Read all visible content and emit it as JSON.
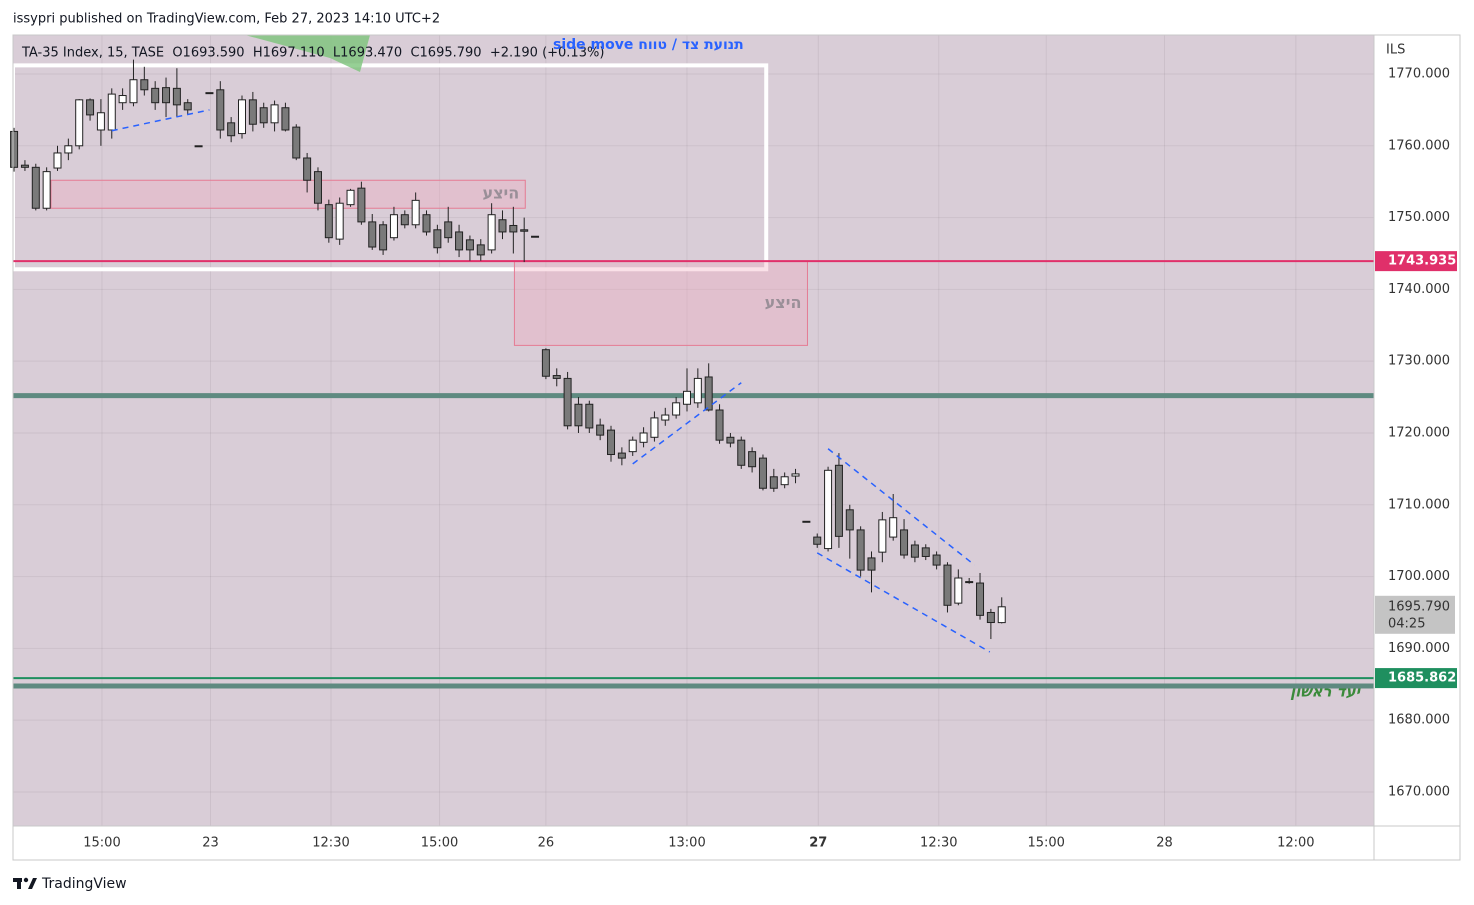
{
  "chart_data": {
    "type": "candlestick",
    "title": "issypri published on TradingView.com, Feb 27, 2023 14:10 UTC+2",
    "legend_text": "TA-35 Index, 15, TASE  O1693.590  H1697.110  L1693.470  C1695.790  +2.190 (+0.13%)",
    "currency": "ILS",
    "annotation": "side move תנועת צד / טווח",
    "target_text": "יעד ראשון",
    "footer": "TradingView",
    "up_color": "#ffffff",
    "down_color": "#7a7a7a",
    "x": [
      0,
      1,
      2,
      3,
      4,
      5,
      6,
      7,
      8,
      9,
      10,
      11,
      12,
      13,
      14,
      15,
      16,
      17,
      18,
      19,
      20,
      21,
      22,
      23,
      24,
      25,
      26,
      27,
      28,
      29,
      30,
      31,
      32,
      33,
      34,
      35,
      36,
      37,
      38,
      39,
      40,
      41,
      42,
      43,
      44,
      45,
      46,
      47,
      48,
      49,
      50,
      51,
      52,
      53,
      54,
      55,
      56,
      57,
      58,
      59,
      60,
      61,
      62,
      63,
      64,
      65,
      66,
      67,
      68,
      69,
      70,
      71,
      72,
      73,
      74,
      75,
      76,
      77,
      78,
      79,
      80,
      81,
      82,
      83,
      84,
      85,
      86,
      87,
      88,
      89,
      90,
      91
    ],
    "open": [
      1762,
      1757.3,
      1757,
      1751.3,
      1756.9,
      1759,
      1760,
      1766.4,
      1762.2,
      1762.2,
      1766,
      1766,
      1769.2,
      1768,
      1768.1,
      1768,
      1766,
      1760,
      1767.4,
      1767.8,
      1763.2,
      1761.7,
      1766.4,
      1765.3,
      1763.2,
      1765.3,
      1762.6,
      1758.3,
      1756.4,
      1751.8,
      1747,
      1751.8,
      1754.1,
      1749.4,
      1749,
      1747.2,
      1750.4,
      1749,
      1750.4,
      1748.3,
      1749.4,
      1748,
      1746.9,
      1746.2,
      1745.5,
      1749.7,
      1748.9,
      1748.3,
      1747.4,
      1731.6,
      1728,
      1727.6,
      1724,
      1724,
      1721.1,
      1720.4,
      1717.2,
      1717.4,
      1718.7,
      1719.4,
      1721.8,
      1722.5,
      1724,
      1724.2,
      1727.8,
      1723.2,
      1719.4,
      1719,
      1717.4,
      1716.5,
      1713.9,
      1712.8,
      1714,
      1707.7,
      1705.5,
      1703.9,
      1715.5,
      1709.3,
      1706.5,
      1702.6,
      1703.4,
      1705.5,
      1706.5,
      1704.4,
      1704,
      1703,
      1701.6,
      1696.3,
      1699.3,
      1699.1,
      1695,
      1693.59
    ],
    "high": [
      1762.5,
      1758,
      1757.5,
      1757,
      1760,
      1761,
      1766.5,
      1766.6,
      1766.5,
      1768,
      1768,
      1772,
      1771,
      1769,
      1769.5,
      1770.8,
      1766.5,
      1760,
      1767.4,
      1769,
      1764,
      1767,
      1767.5,
      1766,
      1766.3,
      1766,
      1763,
      1759,
      1757,
      1752.5,
      1752.8,
      1754,
      1755,
      1750.5,
      1749.5,
      1751.5,
      1751,
      1753.5,
      1751,
      1749,
      1751.5,
      1749,
      1747.5,
      1747,
      1752,
      1751,
      1751.5,
      1750,
      1747.4,
      1731.8,
      1729,
      1728.5,
      1725,
      1724.5,
      1722,
      1721,
      1718,
      1719.5,
      1720.8,
      1723,
      1723.5,
      1725,
      1729,
      1729,
      1729.7,
      1724,
      1720,
      1719.5,
      1718,
      1717,
      1715,
      1714.5,
      1715,
      1707.7,
      1706,
      1715.3,
      1717.2,
      1710,
      1707,
      1703.5,
      1709,
      1711.5,
      1708,
      1705,
      1704.5,
      1703.5,
      1702,
      1701,
      1699.8,
      1700.5,
      1695.5,
      1697.11
    ],
    "low": [
      1756.4,
      1756.5,
      1751,
      1751,
      1756.5,
      1758,
      1759.5,
      1763.5,
      1760,
      1761,
      1765,
      1765.5,
      1767,
      1765,
      1764,
      1764,
      1764.3,
      1760,
      1767.4,
      1761,
      1760.5,
      1761,
      1762,
      1762.5,
      1762,
      1762,
      1758,
      1753.5,
      1751,
      1746.5,
      1746.2,
      1751.5,
      1749,
      1745.5,
      1744.8,
      1746.8,
      1748.5,
      1748.5,
      1747.5,
      1745,
      1746.5,
      1744.5,
      1744,
      1744,
      1745,
      1747,
      1745,
      1743.8,
      1747.4,
      1727.5,
      1726.5,
      1720.5,
      1720,
      1720,
      1719,
      1716,
      1715.5,
      1716.8,
      1718,
      1718.8,
      1721,
      1722,
      1723,
      1723.5,
      1723,
      1718.5,
      1718,
      1715,
      1714.5,
      1712,
      1711.8,
      1712.3,
      1713,
      1707.7,
      1704,
      1703.5,
      1704,
      1702.5,
      1700,
      1697.8,
      1702,
      1705,
      1702.5,
      1702,
      1702.3,
      1701,
      1695,
      1696,
      1699,
      1694,
      1691.3,
      1693.47
    ],
    "close": [
      1757,
      1757,
      1751.3,
      1756.4,
      1759,
      1760,
      1766.4,
      1764.3,
      1764.6,
      1767.2,
      1767,
      1769.2,
      1767.8,
      1766,
      1766,
      1765.7,
      1765,
      1760,
      1767.4,
      1762.2,
      1761.4,
      1766.4,
      1763,
      1763.2,
      1765.7,
      1762.2,
      1758.3,
      1755.2,
      1752,
      1747.2,
      1752,
      1753.8,
      1749.4,
      1745.9,
      1745.5,
      1750.4,
      1749,
      1752.4,
      1748,
      1745.8,
      1747.2,
      1745.5,
      1745.5,
      1744.8,
      1750.4,
      1748,
      1748,
      1748.1,
      1747.4,
      1727.9,
      1727.6,
      1721,
      1721,
      1720.7,
      1719.7,
      1717,
      1716.5,
      1719,
      1720,
      1722.1,
      1722.5,
      1724.2,
      1725.8,
      1727.6,
      1723.2,
      1719,
      1718.6,
      1715.5,
      1715.3,
      1712.3,
      1712.3,
      1713.9,
      1714.3,
      1707.7,
      1704.5,
      1714.8,
      1705.6,
      1706.5,
      1700.9,
      1700.9,
      1707.9,
      1708.2,
      1703,
      1702.7,
      1702.8,
      1701.6,
      1696,
      1699.8,
      1699.3,
      1694.6,
      1693.6,
      1695.79
    ],
    "xlim": [
      -0.1,
      125.3
    ],
    "xticks": [
      {
        "value": 8.1,
        "label": "15:00"
      },
      {
        "value": 18.1,
        "label": "23"
      },
      {
        "value": 29.2,
        "label": "12:30"
      },
      {
        "value": 39.2,
        "label": "15:00"
      },
      {
        "value": 49,
        "label": "26"
      },
      {
        "value": 62,
        "label": "13:00"
      },
      {
        "value": 74.1,
        "label": "27",
        "bold": true
      },
      {
        "value": 85.2,
        "label": "12:30"
      },
      {
        "value": 95.1,
        "label": "15:00"
      },
      {
        "value": 106,
        "label": "28"
      },
      {
        "value": 118.1,
        "label": "12:00"
      }
    ],
    "ylim": [
      1665.26,
      1775.43
    ],
    "yticks": [
      {
        "value": 1670,
        "label": "1670.000"
      },
      {
        "value": 1680,
        "label": "1680.000"
      },
      {
        "value": 1690,
        "label": "1690.000"
      },
      {
        "value": 1700,
        "label": "1700.000"
      },
      {
        "value": 1710,
        "label": "1710.000"
      },
      {
        "value": 1720,
        "label": "1720.000"
      },
      {
        "value": 1730,
        "label": "1730.000"
      },
      {
        "value": 1740,
        "label": "1740.000"
      },
      {
        "value": 1750,
        "label": "1750.000"
      },
      {
        "value": 1760,
        "label": "1760.000"
      },
      {
        "value": 1770,
        "label": "1770.000"
      }
    ],
    "grid": true,
    "price_lines": [
      {
        "value": 1743.935,
        "color": "#e0306a",
        "width": 2,
        "labeled": true
      },
      {
        "value": 1725.2,
        "color": "#5e8a80",
        "width": 5,
        "labeled": false
      },
      {
        "value": 1685.862,
        "color": "#1f8f5f",
        "width": 2,
        "labeled": true
      },
      {
        "value": 1684.76,
        "color": "#5e8a80",
        "width": 5,
        "labeled": false
      }
    ],
    "last_price": {
      "value": 1695.79,
      "label": "1695.790",
      "countdown": "04:25"
    },
    "zones": [
      {
        "x": [
          -0.1,
          69.3
        ],
        "y": [
          1771.2,
          1742.8
        ],
        "stroke": "#ffffff",
        "fill": "none"
      },
      {
        "x": [
          3.4,
          47.1
        ],
        "y": [
          1755.2,
          1751.3
        ],
        "stroke": "#e57b93",
        "fill": "rgba(240,170,190,0.35)",
        "label": "היצע"
      },
      {
        "x": [
          46.1,
          73.1
        ],
        "y": [
          1743.9,
          1732.2
        ],
        "stroke": "#e57b93",
        "fill": "rgba(240,170,190,0.35)",
        "label": "היצע"
      }
    ],
    "trendlines": [
      {
        "x": [
          9,
          18
        ],
        "y": [
          1762.1,
          1765
        ]
      },
      {
        "x": [
          57,
          67
        ],
        "y": [
          1715.7,
          1727
        ]
      },
      {
        "x": [
          75,
          88.5
        ],
        "y": [
          1717.8,
          1701.6
        ]
      },
      {
        "x": [
          74,
          89.9
        ],
        "y": [
          1703.3,
          1689.5
        ]
      }
    ],
    "trend_color": "#2962ff"
  }
}
